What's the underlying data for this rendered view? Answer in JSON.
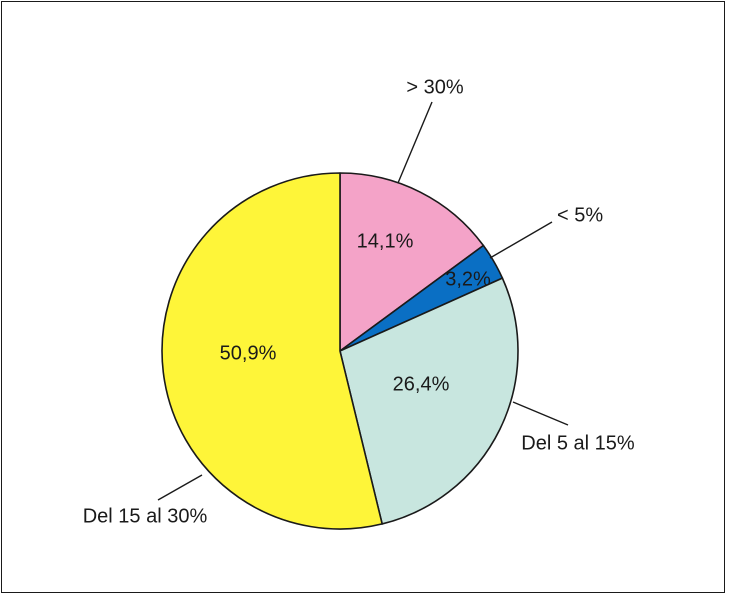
{
  "chart_data": {
    "type": "pie",
    "slices": [
      {
        "label": "> 30%",
        "value": 14.1,
        "value_label": "14,1%",
        "color": "#f4a3c8"
      },
      {
        "label": "< 5%",
        "value": 3.2,
        "value_label": "3,2%",
        "color": "#0a6fc4"
      },
      {
        "label": "Del 5 al 15%",
        "value": 26.4,
        "value_label": "26,4%",
        "color": "#c8e6df"
      },
      {
        "label": "Del 15 al 30%",
        "value": 50.9,
        "value_label": "50,9%",
        "color": "#fef539"
      }
    ],
    "start_angle_deg": 0,
    "direction": "clockwise",
    "outline_color": "#1a1a1a"
  }
}
